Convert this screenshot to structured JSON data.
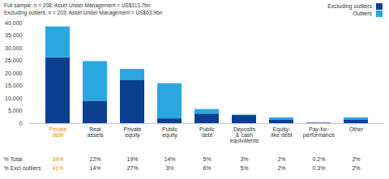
{
  "chart_data": {
    "type": "bar",
    "stacked": true,
    "subtitle": [
      "Full sample: n = 208; Asset Under Management = US$113.7bn",
      "Excluding outliers: n = 203; Asset Under Management = US$63.9bn"
    ],
    "categories": [
      "Private debt",
      "Real assets",
      "Private equity",
      "Public equity",
      "Public debt",
      "Deposits & cash equivalents",
      "Equity-like debt",
      "Pay-for-performance",
      "Other"
    ],
    "series": [
      {
        "name": "Excluding outliers",
        "color": "#0b3f8f",
        "values": [
          26200,
          8900,
          17300,
          1900,
          3800,
          3200,
          1300,
          200,
          1300
        ]
      },
      {
        "name": "Outliers",
        "color": "#2aa7df",
        "values": [
          12300,
          15800,
          4300,
          14000,
          1800,
          200,
          1000,
          30,
          1000
        ]
      }
    ],
    "ylim": [
      0,
      40000
    ],
    "yticks": [
      0,
      {
        "value": 5000,
        "label": "5,000"
      },
      {
        "value": 10000,
        "label": "10,000"
      },
      {
        "value": 15000,
        "label": "15,000"
      },
      {
        "value": 20000,
        "label": "20,000"
      },
      {
        "value": 25000,
        "label": "25,000"
      },
      {
        "value": 30000,
        "label": "30,000"
      },
      {
        "value": 35000,
        "label": "35,000"
      },
      {
        "value": 40000,
        "label": "40,000"
      }
    ],
    "grid": false,
    "legend": "top-right",
    "summary_rows": [
      {
        "label": "% Total",
        "values": [
          "34%",
          "22%",
          "19%",
          "14%",
          "5%",
          "3%",
          "2%",
          "0.2%",
          "2%"
        ]
      },
      {
        "label": "% Excl outliers",
        "values": [
          "41%",
          "14%",
          "27%",
          "3%",
          "6%",
          "5%",
          "2%",
          "0.3%",
          "2%"
        ]
      }
    ]
  }
}
